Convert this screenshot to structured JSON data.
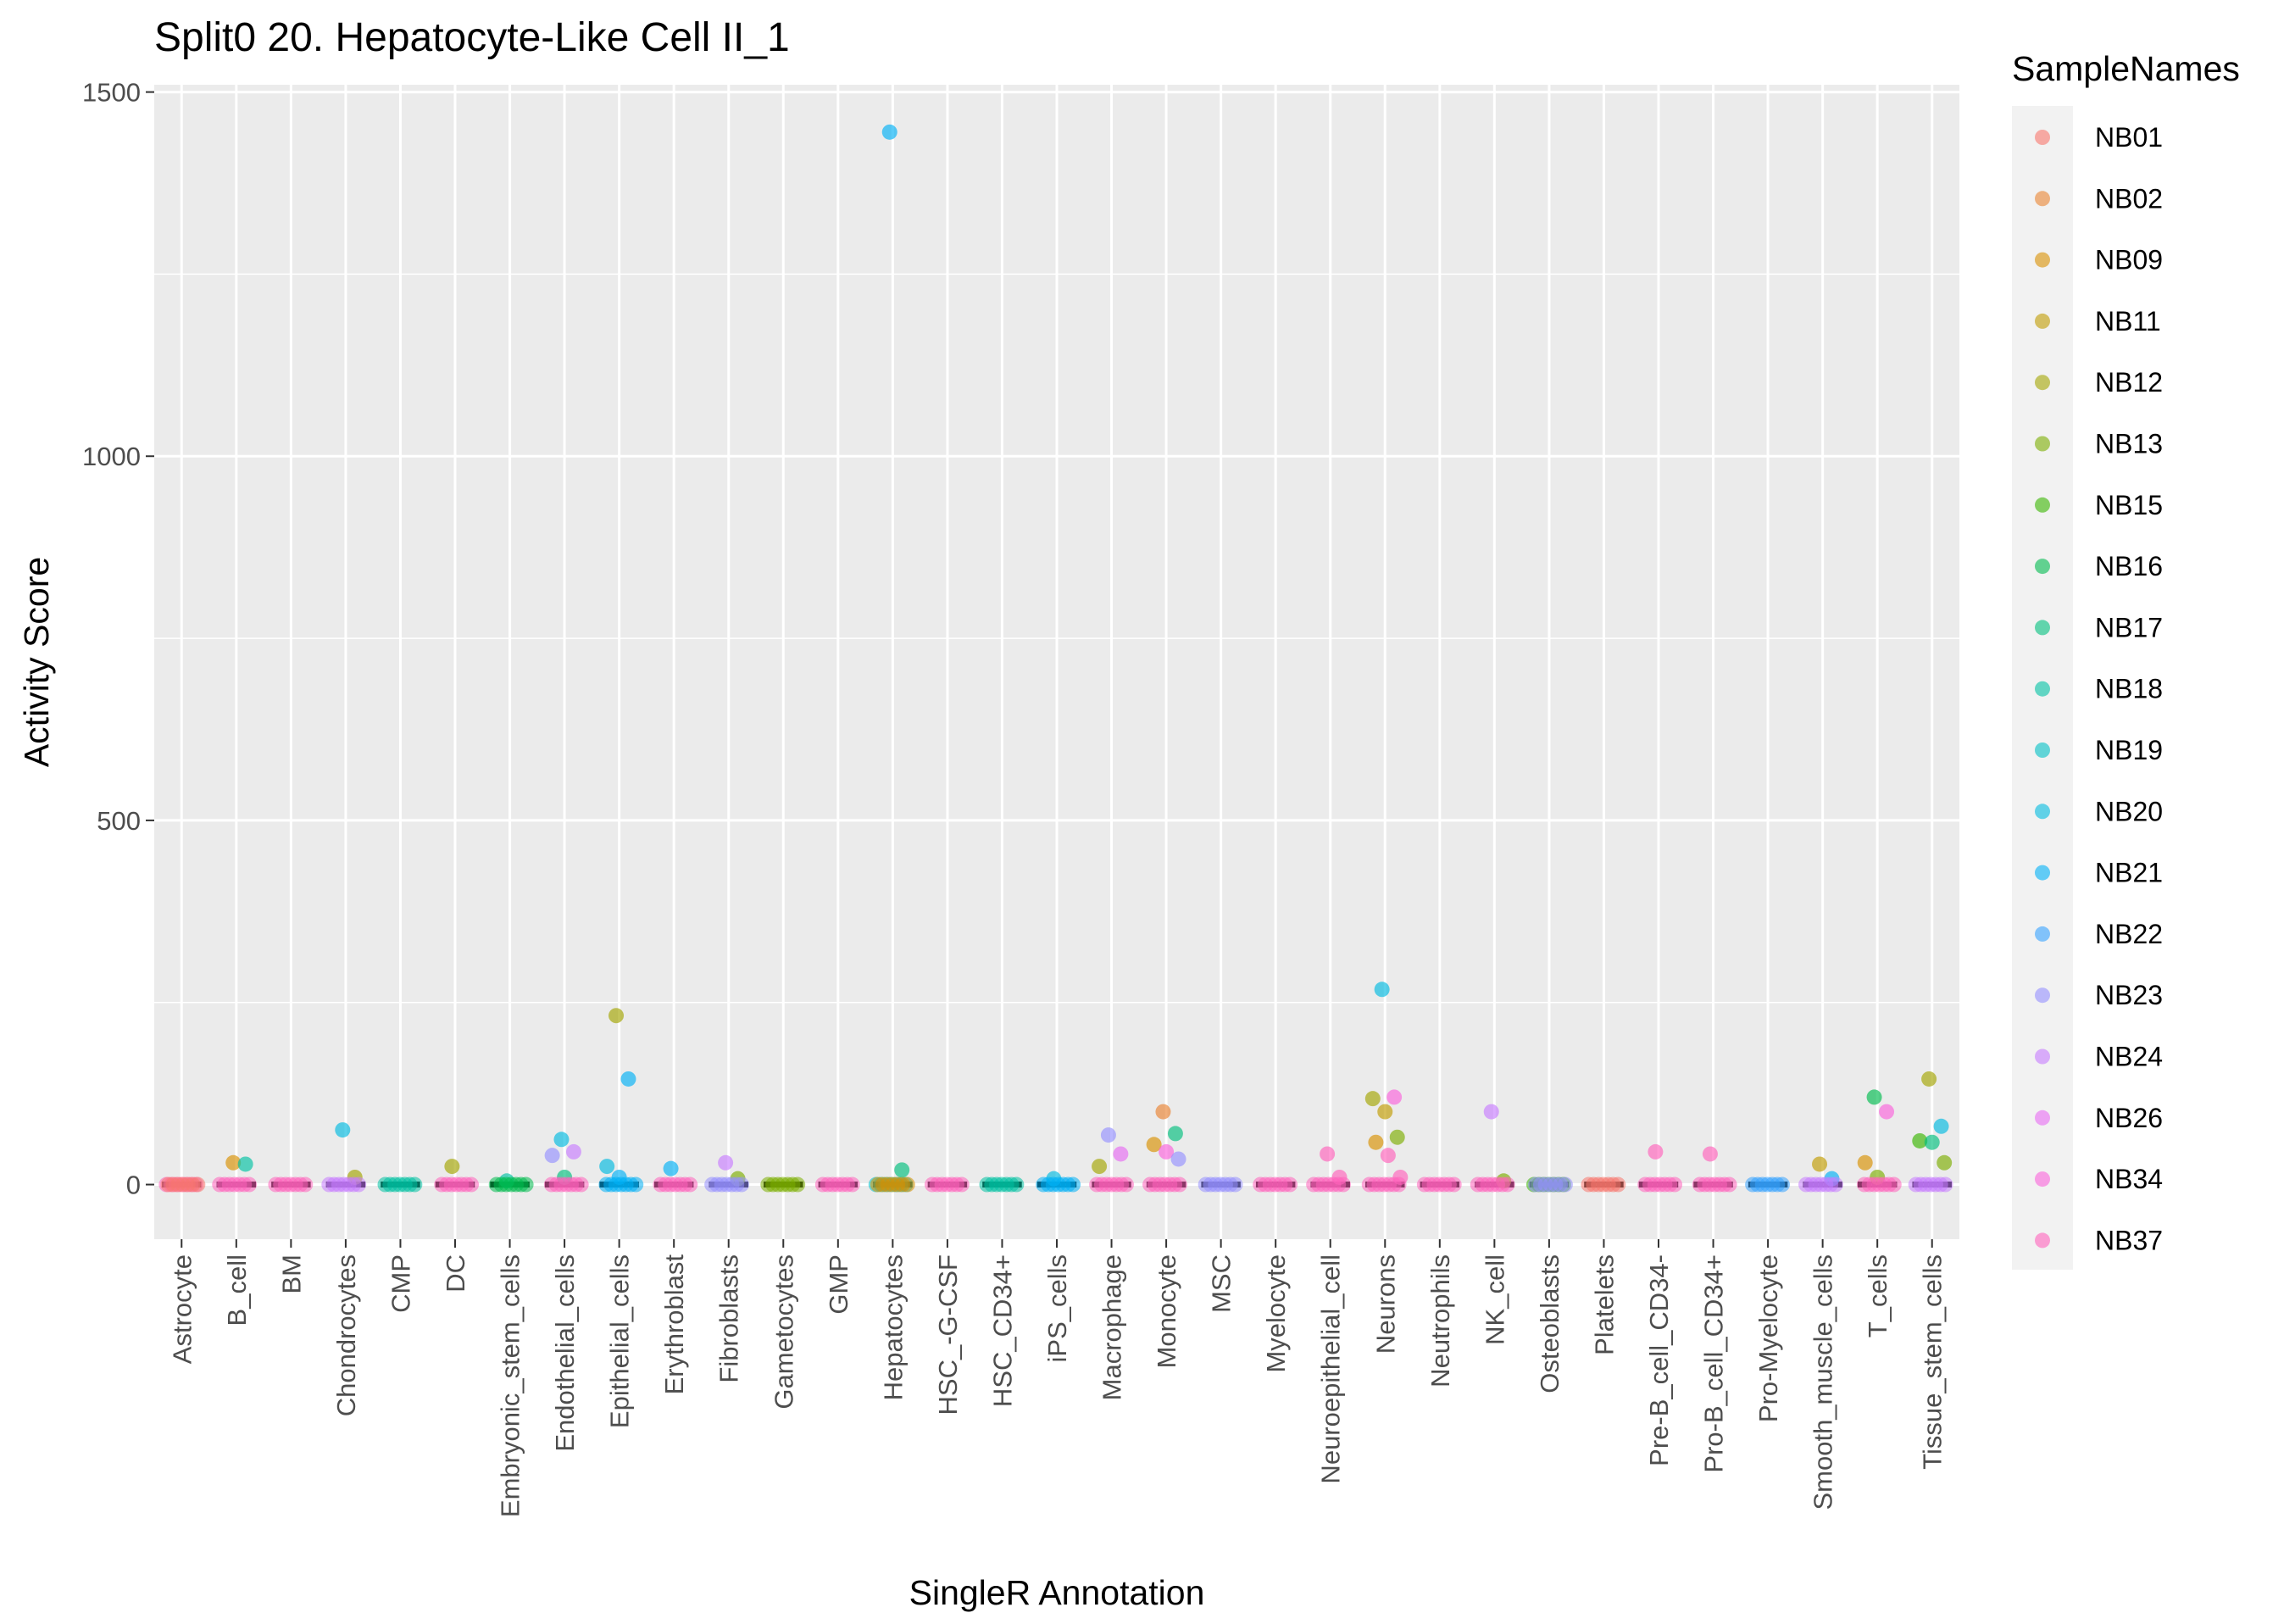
{
  "chart_data": {
    "type": "scatter",
    "title": "Split0 20. Hepatocyte-Like Cell II_1",
    "xlabel": "SingleR Annotation",
    "ylabel": "Activity Score",
    "ylim": [
      -75,
      1510
    ],
    "yticks": [
      0,
      500,
      1000,
      1500
    ],
    "grid": true,
    "legend_position": "right",
    "legend_title": "SampleNames",
    "categories": [
      "Astrocyte",
      "B_cell",
      "BM",
      "Chondrocytes",
      "CMP",
      "DC",
      "Embryonic_stem_cells",
      "Endothelial_cells",
      "Epithelial_cells",
      "Erythroblast",
      "Fibroblasts",
      "Gametocytes",
      "GMP",
      "Hepatocytes",
      "HSC_-G-CSF",
      "HSC_CD34+",
      "iPS_cells",
      "Macrophage",
      "Monocyte",
      "MSC",
      "Myelocyte",
      "Neuroepithelial_cell",
      "Neurons",
      "Neutrophils",
      "NK_cell",
      "Osteoblasts",
      "Platelets",
      "Pre-B_cell_CD34-",
      "Pro-B_cell_CD34+",
      "Pro-Myelocyte",
      "Smooth_muscle_cells",
      "T_cells",
      "Tissue_stem_cells"
    ],
    "series": [
      {
        "name": "NB01",
        "color": "#F8766D"
      },
      {
        "name": "NB02",
        "color": "#EA8331"
      },
      {
        "name": "NB09",
        "color": "#D89000"
      },
      {
        "name": "NB11",
        "color": "#C09B00"
      },
      {
        "name": "NB12",
        "color": "#A3A500"
      },
      {
        "name": "NB13",
        "color": "#7CAE00"
      },
      {
        "name": "NB15",
        "color": "#39B600"
      },
      {
        "name": "NB16",
        "color": "#00BB4E"
      },
      {
        "name": "NB17",
        "color": "#00BF7D"
      },
      {
        "name": "NB18",
        "color": "#00C1A3"
      },
      {
        "name": "NB19",
        "color": "#00BFC4"
      },
      {
        "name": "NB20",
        "color": "#00BAE0"
      },
      {
        "name": "NB21",
        "color": "#00B0F6"
      },
      {
        "name": "NB22",
        "color": "#35A2FF"
      },
      {
        "name": "NB23",
        "color": "#9590FF"
      },
      {
        "name": "NB24",
        "color": "#C77CFF"
      },
      {
        "name": "NB26",
        "color": "#E76BF3"
      },
      {
        "name": "NB34",
        "color": "#FA62DB"
      },
      {
        "name": "NB37",
        "color": "#FF62BC"
      }
    ],
    "points": [
      {
        "category": "Astrocyte",
        "series": "NB37",
        "y": 0
      },
      {
        "category": "Astrocyte",
        "series": "NB01",
        "y": 0
      },
      {
        "category": "B_cell",
        "series": "NB09",
        "y": 30
      },
      {
        "category": "B_cell",
        "series": "NB18",
        "y": 28
      },
      {
        "category": "B_cell",
        "series": "NB37",
        "y": 0
      },
      {
        "category": "BM",
        "series": "NB37",
        "y": 0
      },
      {
        "category": "Chondrocytes",
        "series": "NB20",
        "y": 75
      },
      {
        "category": "Chondrocytes",
        "series": "NB12",
        "y": 10
      },
      {
        "category": "Chondrocytes",
        "series": "NB24",
        "y": 0
      },
      {
        "category": "CMP",
        "series": "NB18",
        "y": 0
      },
      {
        "category": "DC",
        "series": "NB12",
        "y": 25
      },
      {
        "category": "DC",
        "series": "NB37",
        "y": 0
      },
      {
        "category": "Embryonic_stem_cells",
        "series": "NB18",
        "y": 5
      },
      {
        "category": "Embryonic_stem_cells",
        "series": "NB16",
        "y": 0
      },
      {
        "category": "Endothelial_cells",
        "series": "NB20",
        "y": 62
      },
      {
        "category": "Endothelial_cells",
        "series": "NB24",
        "y": 45
      },
      {
        "category": "Endothelial_cells",
        "series": "NB23",
        "y": 40
      },
      {
        "category": "Endothelial_cells",
        "series": "NB17",
        "y": 10
      },
      {
        "category": "Endothelial_cells",
        "series": "NB37",
        "y": 0
      },
      {
        "category": "Epithelial_cells",
        "series": "NB12",
        "y": 232
      },
      {
        "category": "Epithelial_cells",
        "series": "NB21",
        "y": 145
      },
      {
        "category": "Epithelial_cells",
        "series": "NB20",
        "y": 25
      },
      {
        "category": "Epithelial_cells",
        "series": "NB21",
        "y": 10
      },
      {
        "category": "Epithelial_cells",
        "series": "NB21",
        "y": 0
      },
      {
        "category": "Erythroblast",
        "series": "NB21",
        "y": 22
      },
      {
        "category": "Erythroblast",
        "series": "NB37",
        "y": 0
      },
      {
        "category": "Fibroblasts",
        "series": "NB24",
        "y": 30
      },
      {
        "category": "Fibroblasts",
        "series": "NB13",
        "y": 8
      },
      {
        "category": "Fibroblasts",
        "series": "NB23",
        "y": 0
      },
      {
        "category": "Gametocytes",
        "series": "NB13",
        "y": 0
      },
      {
        "category": "GMP",
        "series": "NB37",
        "y": 0
      },
      {
        "category": "Hepatocytes",
        "series": "NB21",
        "y": 1445
      },
      {
        "category": "Hepatocytes",
        "series": "NB17",
        "y": 20
      },
      {
        "category": "Hepatocytes",
        "series": "NB19",
        "y": 0
      },
      {
        "category": "Hepatocytes",
        "series": "NB09",
        "y": 0
      },
      {
        "category": "HSC_-G-CSF",
        "series": "NB37",
        "y": 0
      },
      {
        "category": "HSC_CD34+",
        "series": "NB18",
        "y": 0
      },
      {
        "category": "iPS_cells",
        "series": "NB20",
        "y": 8
      },
      {
        "category": "iPS_cells",
        "series": "NB21",
        "y": 0
      },
      {
        "category": "Macrophage",
        "series": "NB23",
        "y": 68
      },
      {
        "category": "Macrophage",
        "series": "NB26",
        "y": 42
      },
      {
        "category": "Macrophage",
        "series": "NB12",
        "y": 25
      },
      {
        "category": "Macrophage",
        "series": "NB37",
        "y": 0
      },
      {
        "category": "Monocyte",
        "series": "NB02",
        "y": 100
      },
      {
        "category": "Monocyte",
        "series": "NB17",
        "y": 70
      },
      {
        "category": "Monocyte",
        "series": "NB09",
        "y": 55
      },
      {
        "category": "Monocyte",
        "series": "NB34",
        "y": 45
      },
      {
        "category": "Monocyte",
        "series": "NB23",
        "y": 35
      },
      {
        "category": "Monocyte",
        "series": "NB37",
        "y": 0
      },
      {
        "category": "MSC",
        "series": "NB23",
        "y": 0
      },
      {
        "category": "Myelocyte",
        "series": "NB37",
        "y": 0
      },
      {
        "category": "Neuroepithelial_cell",
        "series": "NB37",
        "y": 42
      },
      {
        "category": "Neuroepithelial_cell",
        "series": "NB37",
        "y": 10
      },
      {
        "category": "Neuroepithelial_cell",
        "series": "NB37",
        "y": 0
      },
      {
        "category": "Neurons",
        "series": "NB20",
        "y": 268
      },
      {
        "category": "Neurons",
        "series": "NB34",
        "y": 120
      },
      {
        "category": "Neurons",
        "series": "NB12",
        "y": 118
      },
      {
        "category": "Neurons",
        "series": "NB11",
        "y": 100
      },
      {
        "category": "Neurons",
        "series": "NB13",
        "y": 65
      },
      {
        "category": "Neurons",
        "series": "NB09",
        "y": 58
      },
      {
        "category": "Neurons",
        "series": "NB37",
        "y": 40
      },
      {
        "category": "Neurons",
        "series": "NB37",
        "y": 10
      },
      {
        "category": "Neurons",
        "series": "NB37",
        "y": 0
      },
      {
        "category": "Neutrophils",
        "series": "NB37",
        "y": 0
      },
      {
        "category": "NK_cell",
        "series": "NB24",
        "y": 100
      },
      {
        "category": "NK_cell",
        "series": "NB13",
        "y": 5
      },
      {
        "category": "NK_cell",
        "series": "NB37",
        "y": 0
      },
      {
        "category": "Osteoblasts",
        "series": "NB15",
        "y": 0
      },
      {
        "category": "Osteoblasts",
        "series": "NB23",
        "y": 0
      },
      {
        "category": "Platelets",
        "series": "NB01",
        "y": 0
      },
      {
        "category": "Pre-B_cell_CD34-",
        "series": "NB37",
        "y": 45
      },
      {
        "category": "Pre-B_cell_CD34-",
        "series": "NB37",
        "y": 0
      },
      {
        "category": "Pro-B_cell_CD34+",
        "series": "NB37",
        "y": 42
      },
      {
        "category": "Pro-B_cell_CD34+",
        "series": "NB37",
        "y": 0
      },
      {
        "category": "Pro-Myelocyte",
        "series": "NB22",
        "y": 0
      },
      {
        "category": "Smooth_muscle_cells",
        "series": "NB11",
        "y": 28
      },
      {
        "category": "Smooth_muscle_cells",
        "series": "NB21",
        "y": 8
      },
      {
        "category": "Smooth_muscle_cells",
        "series": "NB24",
        "y": 0
      },
      {
        "category": "T_cells",
        "series": "NB16",
        "y": 120
      },
      {
        "category": "T_cells",
        "series": "NB34",
        "y": 100
      },
      {
        "category": "T_cells",
        "series": "NB09",
        "y": 30
      },
      {
        "category": "T_cells",
        "series": "NB13",
        "y": 10
      },
      {
        "category": "T_cells",
        "series": "NB37",
        "y": 0
      },
      {
        "category": "Tissue_stem_cells",
        "series": "NB12",
        "y": 145
      },
      {
        "category": "Tissue_stem_cells",
        "series": "NB20",
        "y": 80
      },
      {
        "category": "Tissue_stem_cells",
        "series": "NB15",
        "y": 60
      },
      {
        "category": "Tissue_stem_cells",
        "series": "NB17",
        "y": 58
      },
      {
        "category": "Tissue_stem_cells",
        "series": "NB13",
        "y": 30
      },
      {
        "category": "Tissue_stem_cells",
        "series": "NB24",
        "y": 0
      }
    ]
  }
}
